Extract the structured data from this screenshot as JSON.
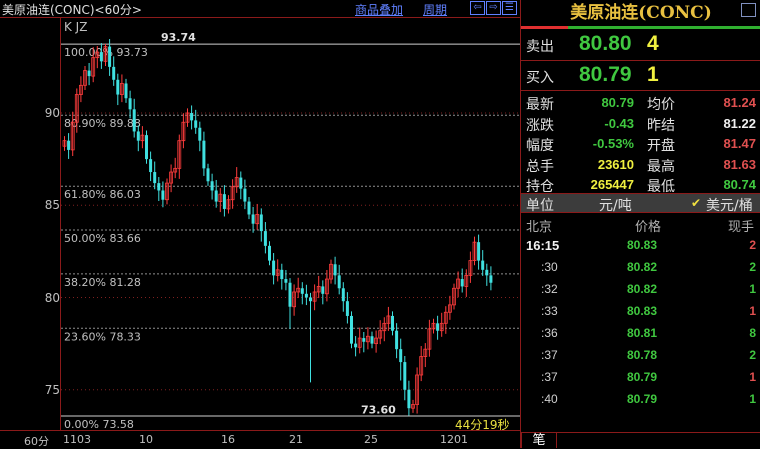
{
  "header": {
    "title": "美原油连(CONC)<60分>",
    "overlay_link": "商品叠加",
    "period_link": "周期"
  },
  "chart_indicator": "K  JZ",
  "chart_data": {
    "type": "candlestick",
    "yticks": [
      90,
      85,
      80,
      75
    ],
    "ylim": [
      73.2,
      94.4
    ],
    "xticks": [
      "1103",
      "10",
      "16",
      "21",
      "25",
      "1201"
    ],
    "period_label": "60分",
    "countdown": "44分19秒",
    "high_label": "93.74",
    "low_label": "73.60",
    "fib_levels": [
      {
        "pct": "100.00%",
        "price": 93.73
      },
      {
        "pct": "80.90%",
        "price": 89.88
      },
      {
        "pct": "61.80%",
        "price": 86.03
      },
      {
        "pct": "50.00%",
        "price": 83.66
      },
      {
        "pct": "38.20%",
        "price": 81.28
      },
      {
        "pct": "23.60%",
        "price": 78.33
      },
      {
        "pct": "0.00%",
        "price": 73.58
      }
    ],
    "closes": [
      88.5,
      88.0,
      89.5,
      91.0,
      91.5,
      92.3,
      92.0,
      93.0,
      93.3,
      92.8,
      93.6,
      92.5,
      91.8,
      91.0,
      91.6,
      90.8,
      90.2,
      89.0,
      88.5,
      88.8,
      87.5,
      86.8,
      86.2,
      85.8,
      85.3,
      86.2,
      86.8,
      87.0,
      88.5,
      89.5,
      90.0,
      89.6,
      89.2,
      88.5,
      87.0,
      86.3,
      85.8,
      85.2,
      85.6,
      84.8,
      85.3,
      86.0,
      86.5,
      85.9,
      85.2,
      84.5,
      84.0,
      84.5,
      83.6,
      82.8,
      82.0,
      81.2,
      81.5,
      81.0,
      80.8,
      79.5,
      80.3,
      80.5,
      80.2,
      80.0,
      79.8,
      80.3,
      80.6,
      80.2,
      81.0,
      81.8,
      81.2,
      80.5,
      79.8,
      79.0,
      77.5,
      77.3,
      77.8,
      77.6,
      77.9,
      77.5,
      77.8,
      78.2,
      78.6,
      79.0,
      78.2,
      77.2,
      76.5,
      75.0,
      74.0,
      74.2,
      75.8,
      76.8,
      77.2,
      78.3,
      78.6,
      78.2,
      78.6,
      79.2,
      79.6,
      80.5,
      81.0,
      80.6,
      81.2,
      82.0,
      83.0,
      82.0,
      81.5,
      81.2,
      80.8
    ],
    "up_color": "#ff3c3c",
    "down_color": "#40e0e0"
  },
  "quote": {
    "title": "美原油连(CONC)",
    "ask_label": "卖出",
    "ask_price": "80.80",
    "ask_vol": "4",
    "bid_label": "买入",
    "bid_price": "80.79",
    "bid_vol": "1",
    "stats": [
      {
        "l1": "最新",
        "v1": "80.79",
        "c1": "g",
        "l2": "均价",
        "v2": "81.24",
        "c2": "r"
      },
      {
        "l1": "涨跌",
        "v1": "-0.43",
        "c1": "g",
        "l2": "昨结",
        "v2": "81.22",
        "c2": "w"
      },
      {
        "l1": "幅度",
        "v1": "-0.53%",
        "c1": "g",
        "l2": "开盘",
        "v2": "81.47",
        "c2": "r"
      },
      {
        "l1": "总手",
        "v1": "23610",
        "c1": "y",
        "l2": "最高",
        "v2": "81.63",
        "c2": "r"
      },
      {
        "l1": "持仓",
        "v1": "265447",
        "c1": "y",
        "l2": "最低",
        "v2": "80.74",
        "c2": "g"
      }
    ],
    "unit_label": "单位",
    "unit_opt1": "元/吨",
    "unit_opt2": "美元/桶",
    "unit_selected": "美元/桶"
  },
  "ticks": {
    "headers": [
      "北京",
      "价格",
      "现手"
    ],
    "rows": [
      {
        "time": "16:15",
        "price": "80.83",
        "vol": "2",
        "vc": "r"
      },
      {
        "time": ":30",
        "price": "80.82",
        "vol": "2",
        "vc": "g"
      },
      {
        "time": ":32",
        "price": "80.82",
        "vol": "1",
        "vc": "g"
      },
      {
        "time": ":33",
        "price": "80.83",
        "vol": "1",
        "vc": "r"
      },
      {
        "time": ":36",
        "price": "80.81",
        "vol": "8",
        "vc": "g"
      },
      {
        "time": ":37",
        "price": "80.78",
        "vol": "2",
        "vc": "g"
      },
      {
        "time": ":37",
        "price": "80.79",
        "vol": "1",
        "vc": "r"
      },
      {
        "time": ":40",
        "price": "80.79",
        "vol": "1",
        "vc": "g"
      }
    ],
    "tab": "笔"
  }
}
